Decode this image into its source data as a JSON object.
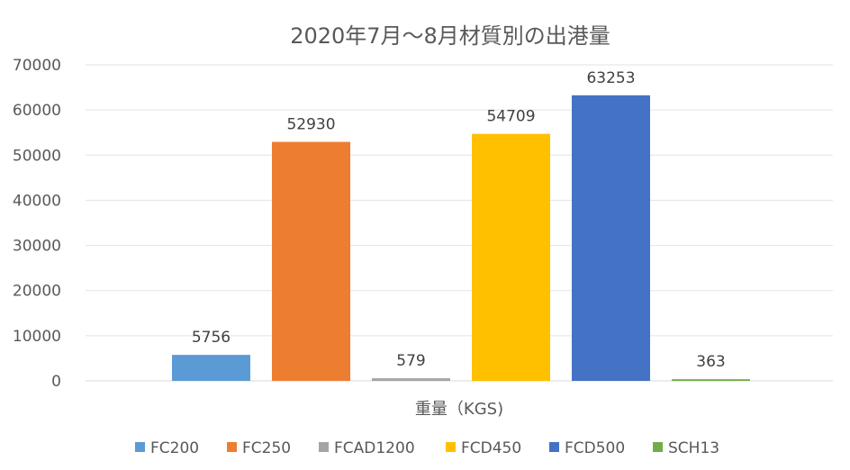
{
  "chart_data": {
    "type": "bar",
    "title": "2020年7月～8月材質別の出港量",
    "categories": [
      "重量（KGS)"
    ],
    "series": [
      {
        "name": "FC200",
        "values": [
          5756
        ],
        "color": "#5B9BD5"
      },
      {
        "name": "FC250",
        "values": [
          52930
        ],
        "color": "#ED7D31"
      },
      {
        "name": "FCAD1200",
        "values": [
          579
        ],
        "color": "#A5A5A5"
      },
      {
        "name": "FCD450",
        "values": [
          54709
        ],
        "color": "#FFC000"
      },
      {
        "name": "FCD500",
        "values": [
          63253
        ],
        "color": "#4472C4"
      },
      {
        "name": "SCH13",
        "values": [
          363
        ],
        "color": "#70AD47"
      }
    ],
    "xlabel": "",
    "ylabel": "",
    "ylim": [
      0,
      70000
    ],
    "yticks": [
      "0",
      "10000",
      "20000",
      "30000",
      "40000",
      "50000",
      "60000",
      "70000"
    ],
    "grid": true,
    "data_labels": true,
    "legend": "bottom"
  }
}
